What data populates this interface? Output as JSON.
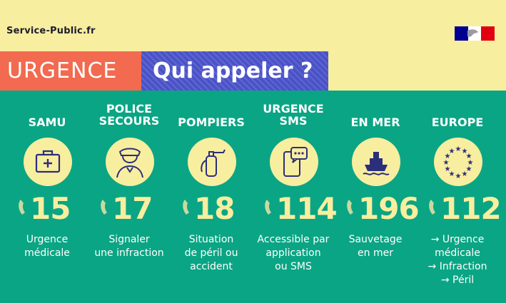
{
  "header": {
    "brand": "Service-Public.fr",
    "urgence": "URGENCE",
    "question": "Qui appeler ?"
  },
  "colors": {
    "yellow": "#f8ee9f",
    "green": "#0aa584",
    "red": "#f26a4f",
    "blue": "#4a52c8",
    "dark": "#1e1e2e"
  },
  "services": [
    {
      "title": [
        "SAMU"
      ],
      "icon": "medical-kit-icon",
      "number": "15",
      "description": [
        "Urgence",
        "médicale"
      ]
    },
    {
      "title": [
        "POLICE",
        "SECOURS"
      ],
      "icon": "police-officer-icon",
      "number": "17",
      "description": [
        "Signaler",
        "une infraction"
      ]
    },
    {
      "title": [
        "POMPIERS"
      ],
      "icon": "fire-extinguisher-icon",
      "number": "18",
      "description": [
        "Situation",
        "de péril ou",
        "accident"
      ]
    },
    {
      "title": [
        "URGENCE",
        "SMS"
      ],
      "icon": "sms-phone-icon",
      "number": "114",
      "description": [
        "Accessible par",
        "application",
        "ou SMS"
      ]
    },
    {
      "title": [
        "EN MER"
      ],
      "icon": "ship-icon",
      "number": "196",
      "description": [
        "Sauvetage",
        "en mer"
      ]
    },
    {
      "title": [
        "EUROPE"
      ],
      "icon": "eu-stars-icon",
      "number": "112",
      "description": [
        "→ Urgence",
        "médicale",
        "→ Infraction",
        "→ Péril"
      ]
    }
  ]
}
